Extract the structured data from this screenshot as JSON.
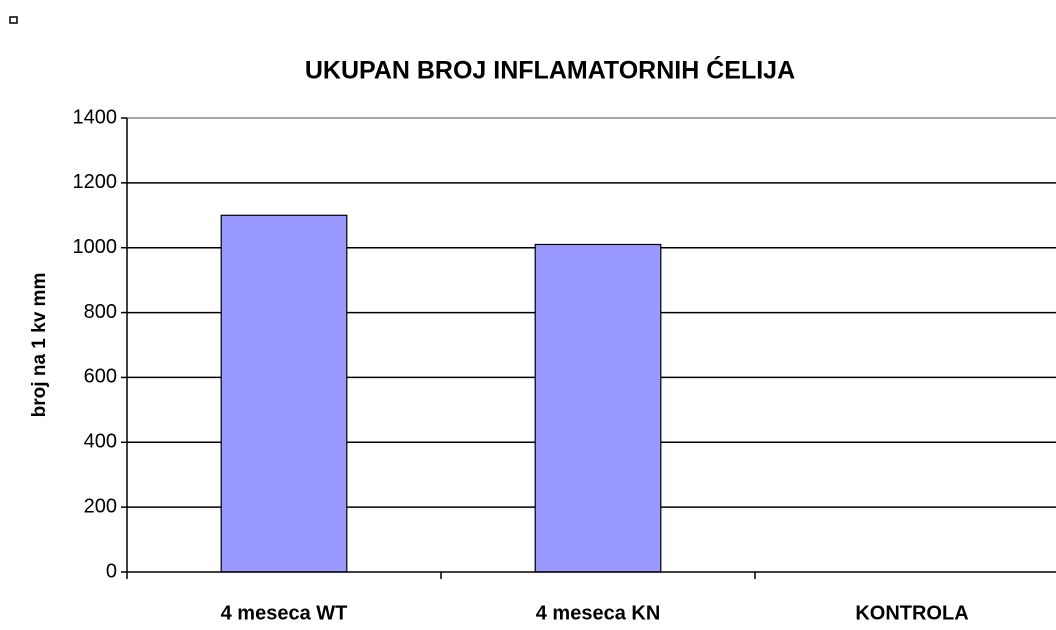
{
  "chart_data": {
    "type": "bar",
    "title": "UKUPAN BROJ INFLAMATORNIH ĆELIJA",
    "y_label": "broj na 1 kv mm",
    "categories": [
      "4 meseca  WT",
      "4 meseca  KN",
      "KONTROLA"
    ],
    "values": [
      1100,
      1010,
      0
    ],
    "color": "#9999ff",
    "ylim": [
      0,
      1400
    ],
    "yticks": [
      0,
      200,
      400,
      600,
      800,
      1000,
      1200,
      1400
    ],
    "grid": true
  }
}
